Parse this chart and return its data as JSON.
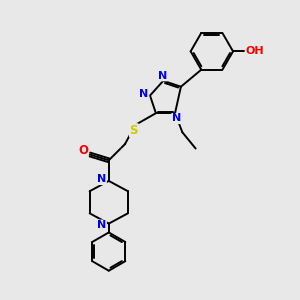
{
  "bg_color": "#e8e8e8",
  "atom_colors": {
    "N": "#0000ee",
    "O": "#ff0000",
    "S": "#cccc00",
    "C": "#000000"
  },
  "bond_color": "#000000",
  "bond_width": 1.4,
  "fig_w": 3.0,
  "fig_h": 3.0,
  "dpi": 100,
  "xlim": [
    0,
    10
  ],
  "ylim": [
    0,
    10
  ]
}
